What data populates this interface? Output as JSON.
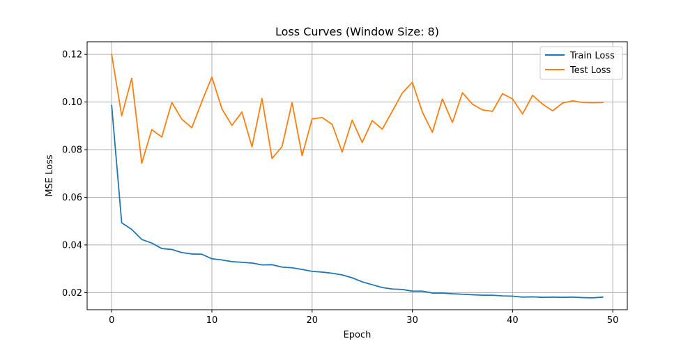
{
  "chart_data": {
    "type": "line",
    "title": "Loss Curves (Window Size: 8)",
    "xlabel": "Epoch",
    "ylabel": "MSE Loss",
    "xlim": [
      -2.45,
      51.45
    ],
    "ylim": [
      0.0128,
      0.1253
    ],
    "xticks": [
      0,
      10,
      20,
      30,
      40,
      50
    ],
    "xtick_labels": [
      "0",
      "10",
      "20",
      "30",
      "40",
      "50"
    ],
    "yticks": [
      0.02,
      0.04,
      0.06,
      0.08,
      0.1,
      0.12
    ],
    "ytick_labels": [
      "0.02",
      "0.04",
      "0.06",
      "0.08",
      "0.10",
      "0.12"
    ],
    "grid": true,
    "legend_position": "top-right",
    "x": [
      0,
      1,
      2,
      3,
      4,
      5,
      6,
      7,
      8,
      9,
      10,
      11,
      12,
      13,
      14,
      15,
      16,
      17,
      18,
      19,
      20,
      21,
      22,
      23,
      24,
      25,
      26,
      27,
      28,
      29,
      30,
      31,
      32,
      33,
      34,
      35,
      36,
      37,
      38,
      39,
      40,
      41,
      42,
      43,
      44,
      45,
      46,
      47,
      48,
      49
    ],
    "series": [
      {
        "name": "Train Loss",
        "color": "#1f77b4",
        "values": [
          0.0985,
          0.0493,
          0.0465,
          0.0423,
          0.0408,
          0.0385,
          0.0381,
          0.0368,
          0.0362,
          0.0361,
          0.0342,
          0.0337,
          0.033,
          0.0327,
          0.0324,
          0.0316,
          0.0317,
          0.0307,
          0.0304,
          0.0297,
          0.0289,
          0.0286,
          0.0281,
          0.0274,
          0.0262,
          0.0245,
          0.0233,
          0.0221,
          0.0215,
          0.0213,
          0.0206,
          0.0206,
          0.0198,
          0.0198,
          0.0195,
          0.0193,
          0.0191,
          0.0189,
          0.0189,
          0.0186,
          0.0185,
          0.0181,
          0.0182,
          0.018,
          0.0181,
          0.018,
          0.0181,
          0.0179,
          0.0178,
          0.0181
        ]
      },
      {
        "name": "Test Loss",
        "color": "#ff7f0e",
        "values": [
          0.12,
          0.0942,
          0.11,
          0.0743,
          0.0884,
          0.0853,
          0.0998,
          0.0928,
          0.0892,
          0.1002,
          0.1105,
          0.0971,
          0.0902,
          0.0958,
          0.0812,
          0.1015,
          0.0763,
          0.0813,
          0.0998,
          0.0775,
          0.0929,
          0.0935,
          0.0906,
          0.079,
          0.0924,
          0.083,
          0.0922,
          0.0886,
          0.0961,
          0.1038,
          0.1083,
          0.0958,
          0.0873,
          0.1013,
          0.0914,
          0.1039,
          0.0991,
          0.0967,
          0.0961,
          0.1035,
          0.1013,
          0.095,
          0.1028,
          0.0991,
          0.0963,
          0.0996,
          0.1005,
          0.0998,
          0.0997,
          0.0998
        ]
      }
    ]
  }
}
